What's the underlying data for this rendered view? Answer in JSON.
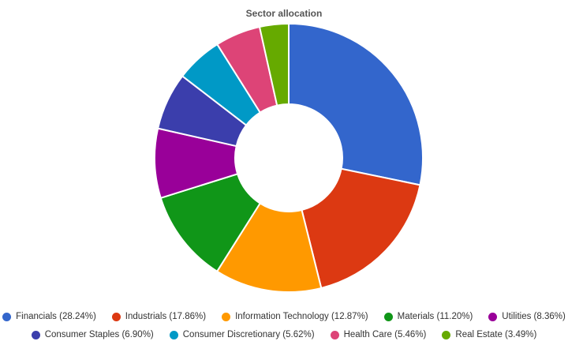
{
  "chart_data": {
    "type": "pie",
    "title": "Sector allocation",
    "donut": true,
    "legend_position": "bottom",
    "categories": [
      "Financials",
      "Industrials",
      "Information Technology",
      "Materials",
      "Utilities",
      "Consumer Staples",
      "Consumer Discretionary",
      "Health Care",
      "Real Estate"
    ],
    "values": [
      28.24,
      17.86,
      12.87,
      11.2,
      8.36,
      6.9,
      5.62,
      5.46,
      3.49
    ],
    "colors": [
      "#3366cc",
      "#dc3912",
      "#ff9900",
      "#109618",
      "#990099",
      "#3b3eac",
      "#0099c6",
      "#dd4477",
      "#66aa00"
    ],
    "legend_labels": [
      "Financials (28.24%)",
      "Industrials (17.86%)",
      "Information Technology (12.87%)",
      "Materials (11.20%)",
      "Utilities (8.36%)",
      "Consumer Staples (6.90%)",
      "Consumer Discretionary (5.62%)",
      "Health Care (5.46%)",
      "Real Estate (3.49%)"
    ]
  }
}
